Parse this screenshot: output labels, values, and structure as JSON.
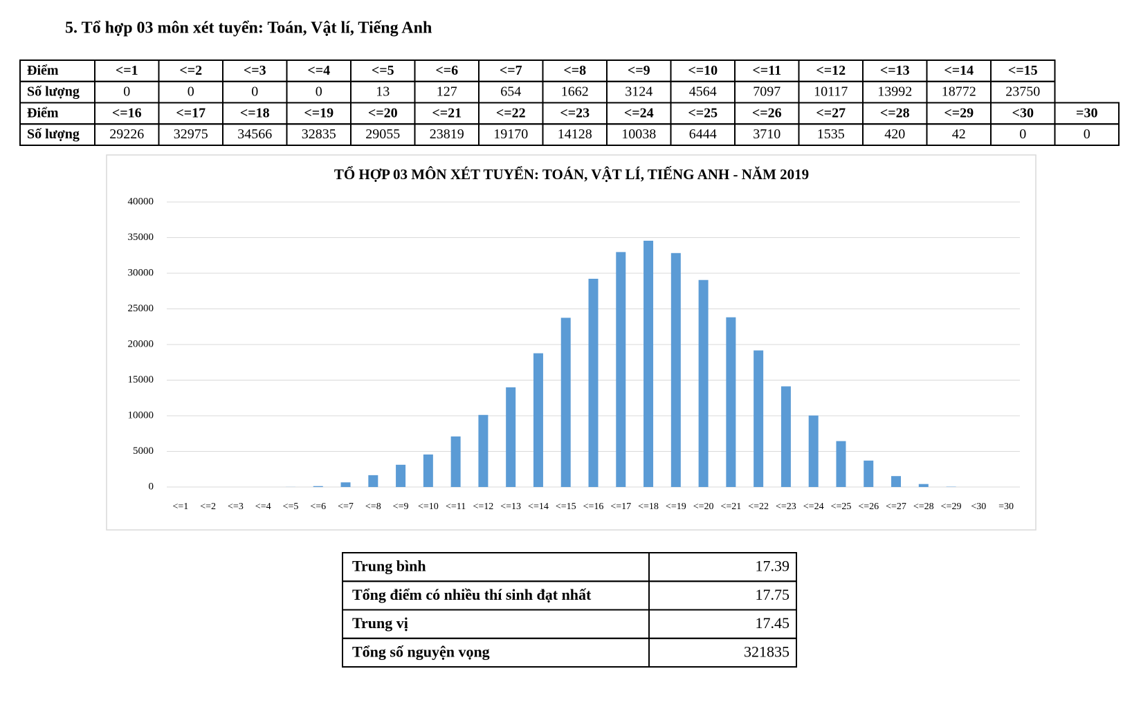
{
  "heading": "5. Tổ hợp 03 môn xét tuyển: Toán, Vật lí, Tiếng Anh",
  "score_table": {
    "rows": [
      [
        "Điểm",
        "<=1",
        "<=2",
        "<=3",
        "<=4",
        "<=5",
        "<=6",
        "<=7",
        "<=8",
        "<=9",
        "<=10",
        "<=11",
        "<=12",
        "<=13",
        "<=14",
        "<=15"
      ],
      [
        "Số lượng",
        0,
        0,
        0,
        0,
        13,
        127,
        654,
        1662,
        3124,
        4564,
        7097,
        10117,
        13992,
        18772,
        23750
      ],
      [
        "Điểm",
        "<=16",
        "<=17",
        "<=18",
        "<=19",
        "<=20",
        "<=21",
        "<=22",
        "<=23",
        "<=24",
        "<=25",
        "<=26",
        "<=27",
        "<=28",
        "<=29",
        "<30",
        "=30"
      ],
      [
        "Số lượng",
        29226,
        32975,
        34566,
        32835,
        29055,
        23819,
        19170,
        14128,
        10038,
        6444,
        3710,
        1535,
        420,
        42,
        0,
        0
      ]
    ]
  },
  "chart_data": {
    "type": "bar",
    "title": "TỔ HỢP 03 MÔN XÉT TUYỂN: TOÁN, VẬT LÍ, TIẾNG ANH - NĂM 2019",
    "categories": [
      "<=1",
      "<=2",
      "<=3",
      "<=4",
      "<=5",
      "<=6",
      "<=7",
      "<=8",
      "<=9",
      "<=10",
      "<=11",
      "<=12",
      "<=13",
      "<=14",
      "<=15",
      "<=16",
      "<=17",
      "<=18",
      "<=19",
      "<=20",
      "<=21",
      "<=22",
      "<=23",
      "<=24",
      "<=25",
      "<=26",
      "<=27",
      "<=28",
      "<=29",
      "<30",
      "=30"
    ],
    "values": [
      0,
      0,
      0,
      0,
      13,
      127,
      654,
      1662,
      3124,
      4564,
      7097,
      10117,
      13992,
      18772,
      23750,
      29226,
      32975,
      34566,
      32835,
      29055,
      23819,
      19170,
      14128,
      10038,
      6444,
      3710,
      1535,
      420,
      42,
      0,
      0
    ],
    "color": "#5b9bd5",
    "ylim": [
      0,
      40000
    ],
    "yticks": [
      0,
      5000,
      10000,
      15000,
      20000,
      25000,
      30000,
      35000,
      40000
    ],
    "grid": true
  },
  "stats_table": {
    "rows": [
      [
        "Trung bình",
        17.39
      ],
      [
        "Tổng điểm có nhiều thí sinh đạt nhất",
        17.75
      ],
      [
        "Trung vị",
        17.45
      ],
      [
        "Tổng số nguyện vọng",
        321835
      ]
    ]
  }
}
